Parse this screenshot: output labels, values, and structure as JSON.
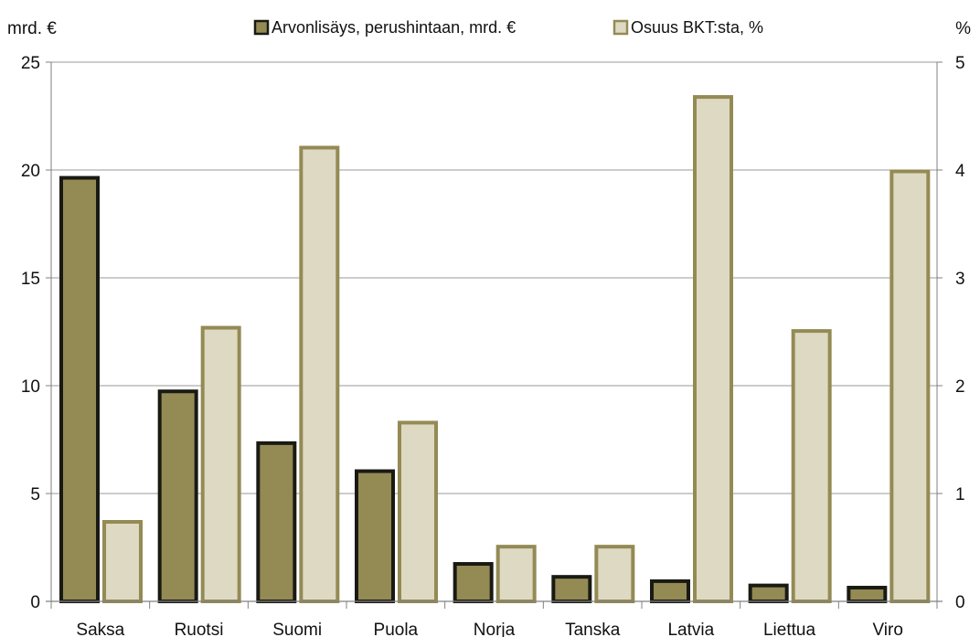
{
  "chart_data": {
    "type": "bar",
    "categories": [
      "Saksa",
      "Ruotsi",
      "Suomi",
      "Puola",
      "Norja",
      "Tanska",
      "Latvia",
      "Liettua",
      "Viro"
    ],
    "series": [
      {
        "name": "Arvonlisäys, perushintaan, mrd. €",
        "axis": "left",
        "values": [
          19.7,
          9.8,
          7.4,
          6.1,
          1.8,
          1.2,
          1.0,
          0.8,
          0.7
        ],
        "fill": "#948a54",
        "stroke": "#1a1a14"
      },
      {
        "name": "Osuus BKT:sta, %",
        "axis": "right",
        "values": [
          0.75,
          2.55,
          4.22,
          1.67,
          0.52,
          0.52,
          4.69,
          2.52,
          4.0
        ],
        "fill": "#ddd9c3",
        "stroke": "#948a54"
      }
    ],
    "y_left": {
      "label": "mrd. €",
      "min": 0,
      "max": 25,
      "ticks": [
        "0",
        "5",
        "10",
        "15",
        "20",
        "25"
      ]
    },
    "y_right": {
      "label": "%",
      "min": 0,
      "max": 5,
      "ticks": [
        "0",
        "1",
        "2",
        "3",
        "4",
        "5"
      ]
    },
    "grid": true,
    "legend": "top-center"
  }
}
